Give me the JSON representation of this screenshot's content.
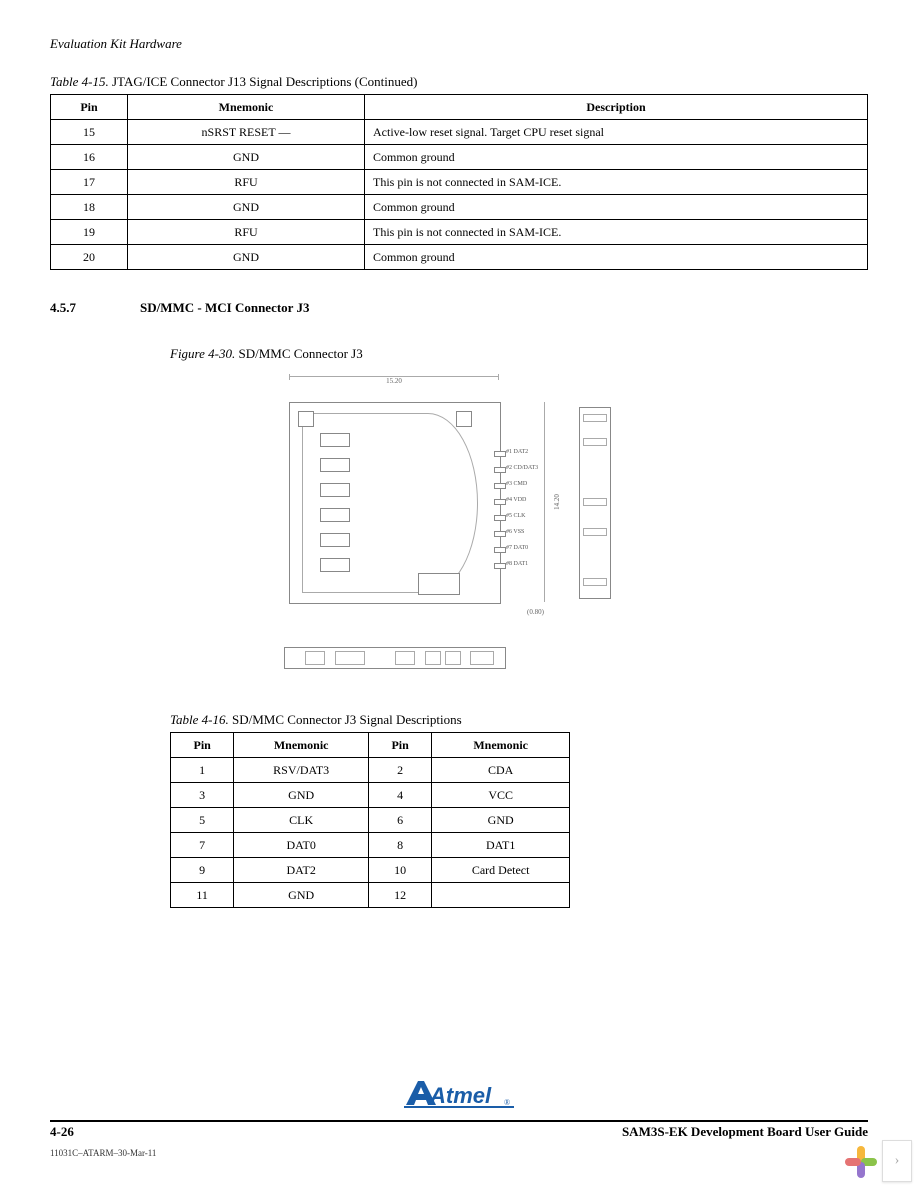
{
  "header": {
    "title": "Evaluation Kit Hardware"
  },
  "table1": {
    "caption_num": "Table 4-15.",
    "caption_text": "JTAG/ICE Connector J13 Signal Descriptions (Continued)",
    "headers": [
      "Pin",
      "Mnemonic",
      "Description"
    ],
    "rows": [
      {
        "pin": "15",
        "mnemonic": "nSRST RESET —",
        "desc": "Active-low reset signal. Target CPU reset signal"
      },
      {
        "pin": "16",
        "mnemonic": "GND",
        "desc": "Common ground"
      },
      {
        "pin": "17",
        "mnemonic": "RFU",
        "desc": "This pin is not connected in SAM-ICE."
      },
      {
        "pin": "18",
        "mnemonic": "GND",
        "desc": "Common ground"
      },
      {
        "pin": "19",
        "mnemonic": "RFU",
        "desc": "This pin is not connected in SAM-ICE."
      },
      {
        "pin": "20",
        "mnemonic": "GND",
        "desc": "Common ground"
      }
    ]
  },
  "section": {
    "number": "4.5.7",
    "title": "SD/MMC - MCI Connector J3"
  },
  "figure": {
    "caption_num": "Figure 4-30.",
    "caption_text": "SD/MMC Connector J3"
  },
  "diagram": {
    "top_dim": "15.20",
    "right_dim": "14.20",
    "bracket_dim": "(0.80)",
    "pin_labels": [
      "#1  DAT2",
      "#2  CD/DAT3",
      "#3  CMD",
      "#4  VDD",
      "#5  CLK",
      "#6  VSS",
      "#7  DAT0",
      "#8  DAT1"
    ]
  },
  "table2": {
    "caption_num": "Table 4-16.",
    "caption_text": "SD/MMC Connector J3 Signal Descriptions",
    "headers": [
      "Pin",
      "Mnemonic",
      "Pin",
      "Mnemonic"
    ],
    "rows": [
      {
        "c1": "1",
        "c2": "RSV/DAT3",
        "c3": "2",
        "c4": "CDA"
      },
      {
        "c1": "3",
        "c2": "GND",
        "c3": "4",
        "c4": "VCC"
      },
      {
        "c1": "5",
        "c2": "CLK",
        "c3": "6",
        "c4": "GND"
      },
      {
        "c1": "7",
        "c2": "DAT0",
        "c3": "8",
        "c4": "DAT1"
      },
      {
        "c1": "9",
        "c2": "DAT2",
        "c3": "10",
        "c4": "Card Detect"
      },
      {
        "c1": "11",
        "c2": "GND",
        "c3": "12",
        "c4": ""
      }
    ]
  },
  "logo": {
    "text": "Atmel",
    "color": "#1a5da8",
    "reg": "®"
  },
  "footer": {
    "page": "4-26",
    "doc_title": "SAM3S-EK Development Board User Guide"
  },
  "docid": "11031C–ATARM–30-Mar-11",
  "nav": {
    "petals": [
      "#f6b73c",
      "#8bc34a",
      "#9575cd",
      "#e57373"
    ]
  }
}
